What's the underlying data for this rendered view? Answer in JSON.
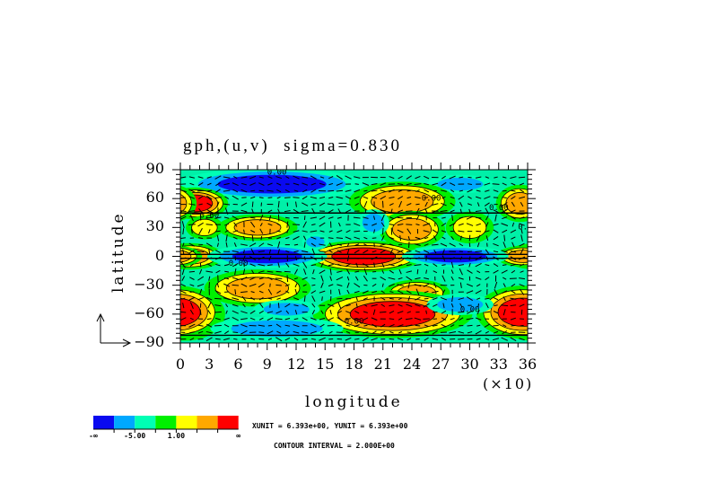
{
  "chart_data": {
    "type": "heatmap",
    "title": "gph,(u,v)  sigma=0.830",
    "xlabel": "longitude",
    "ylabel": "latitude",
    "x_scale_note": "(×10)",
    "xlim": [
      0,
      360
    ],
    "ylim": [
      -90,
      90
    ],
    "x_ticks": [
      "0",
      "3",
      "6",
      "9",
      "12",
      "15",
      "18",
      "21",
      "24",
      "27",
      "30",
      "33",
      "36"
    ],
    "y_ticks": [
      "90",
      "60",
      "30",
      "0",
      "-30",
      "-60",
      "-90"
    ],
    "colorbar": {
      "colors": [
        "#0a0af0",
        "#00a8ff",
        "#00ffb4",
        "#00f000",
        "#ffff00",
        "#ffa800",
        "#ff0000"
      ],
      "labels": [
        "-∞",
        "-5.00",
        "1.00",
        "∞"
      ]
    },
    "contour_labels": [
      "0.00",
      "0.00",
      "0.00",
      "0.00",
      "0.00",
      "0.00",
      "0.00",
      "0.00"
    ],
    "features": [
      {
        "lon": 95,
        "lat": 75,
        "level": 0,
        "rx": 70,
        "ry": 12
      },
      {
        "lon": 290,
        "lat": 75,
        "level": 1,
        "rx": 25,
        "ry": 7
      },
      {
        "lon": 15,
        "lat": 55,
        "level": 6,
        "rx": 25,
        "ry": 12
      },
      {
        "lon": 230,
        "lat": 57,
        "level": 5,
        "rx": 40,
        "ry": 15
      },
      {
        "lon": 352,
        "lat": 55,
        "level": 5,
        "rx": 18,
        "ry": 14
      },
      {
        "lon": 80,
        "lat": 30,
        "level": 5,
        "rx": 30,
        "ry": 10
      },
      {
        "lon": 25,
        "lat": 30,
        "level": 4,
        "rx": 14,
        "ry": 9
      },
      {
        "lon": 240,
        "lat": 28,
        "level": 5,
        "rx": 25,
        "ry": 14
      },
      {
        "lon": 200,
        "lat": 35,
        "level": 1,
        "rx": 12,
        "ry": 10
      },
      {
        "lon": 300,
        "lat": 30,
        "level": 4,
        "rx": 18,
        "ry": 12
      },
      {
        "lon": 10,
        "lat": 0,
        "level": 5,
        "rx": 25,
        "ry": 10
      },
      {
        "lon": 190,
        "lat": 0,
        "level": 6,
        "rx": 45,
        "ry": 12
      },
      {
        "lon": 355,
        "lat": 0,
        "level": 5,
        "rx": 20,
        "ry": 8
      },
      {
        "lon": 90,
        "lat": 0,
        "level": 0,
        "rx": 45,
        "ry": 9
      },
      {
        "lon": 285,
        "lat": 0,
        "level": 0,
        "rx": 40,
        "ry": 8
      },
      {
        "lon": 80,
        "lat": -33,
        "level": 5,
        "rx": 40,
        "ry": 14
      },
      {
        "lon": 245,
        "lat": -38,
        "level": 5,
        "rx": 25,
        "ry": 10
      },
      {
        "lon": 5,
        "lat": -60,
        "level": 6,
        "rx": 30,
        "ry": 20
      },
      {
        "lon": 220,
        "lat": -60,
        "level": 6,
        "rx": 60,
        "ry": 18
      },
      {
        "lon": 355,
        "lat": -58,
        "level": 6,
        "rx": 35,
        "ry": 20
      },
      {
        "lon": 100,
        "lat": -75,
        "level": 1,
        "rx": 50,
        "ry": 9
      },
      {
        "lon": 110,
        "lat": -55,
        "level": 1,
        "rx": 25,
        "ry": 7
      },
      {
        "lon": 290,
        "lat": -50,
        "level": 1,
        "rx": 25,
        "ry": 8
      },
      {
        "lon": 140,
        "lat": 15,
        "level": 1,
        "rx": 10,
        "ry": 6
      }
    ]
  },
  "footer": {
    "units": "XUNIT = 6.393e+00, YUNIT = 6.393e+00",
    "contour_interval": "CONTOUR INTERVAL = 2.000E+00"
  }
}
